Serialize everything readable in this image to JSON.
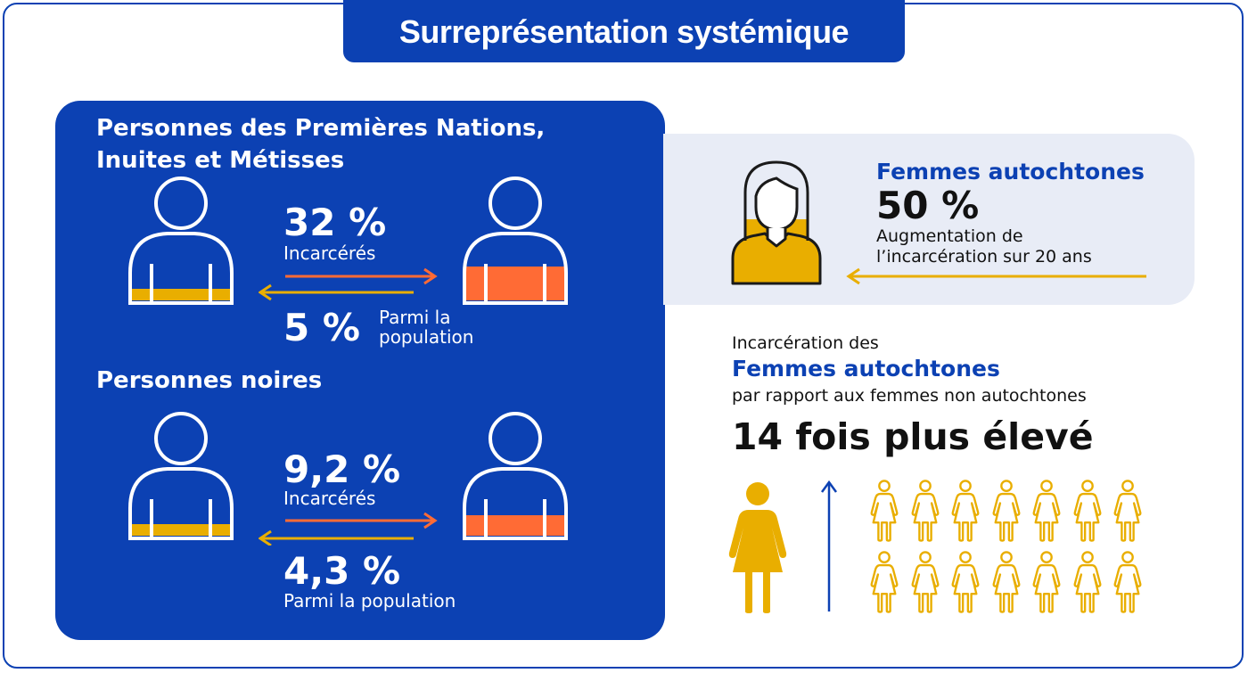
{
  "title": "Surreprésentation systémique",
  "colors": {
    "blue": "#0c41b3",
    "gold": "#e9ae00",
    "orange": "#ff6b35",
    "light": "#e8ecf6"
  },
  "group1": {
    "title_line1": "Personnes des Premières Nations,",
    "title_line2": "Inuites et Métisses",
    "incarcerated_pct": "32 %",
    "incarcerated_label": "Incarcérés",
    "population_pct": "5 %",
    "population_label_line1": "Parmi la",
    "population_label_line2": "population",
    "incarcerated_fill": 0.32,
    "population_fill": 0.05
  },
  "group2": {
    "title": "Personnes noires",
    "incarcerated_pct": "9,2 %",
    "incarcerated_label": "Incarcérés",
    "population_pct": "4,3 %",
    "population_label": "Parmi la population",
    "incarcerated_fill": 0.092,
    "population_fill": 0.043
  },
  "women_card": {
    "heading": "Femmes autochtones",
    "pct": "50 %",
    "desc_line1": "Augmentation de",
    "desc_line2": "l’incarcération sur 20 ans"
  },
  "comparison": {
    "line1": "Incarcération des",
    "line2": "Femmes autochtones",
    "line3": "par rapport aux femmes non autochtones",
    "headline": "14 fois plus élevé",
    "icon_count": 14
  }
}
